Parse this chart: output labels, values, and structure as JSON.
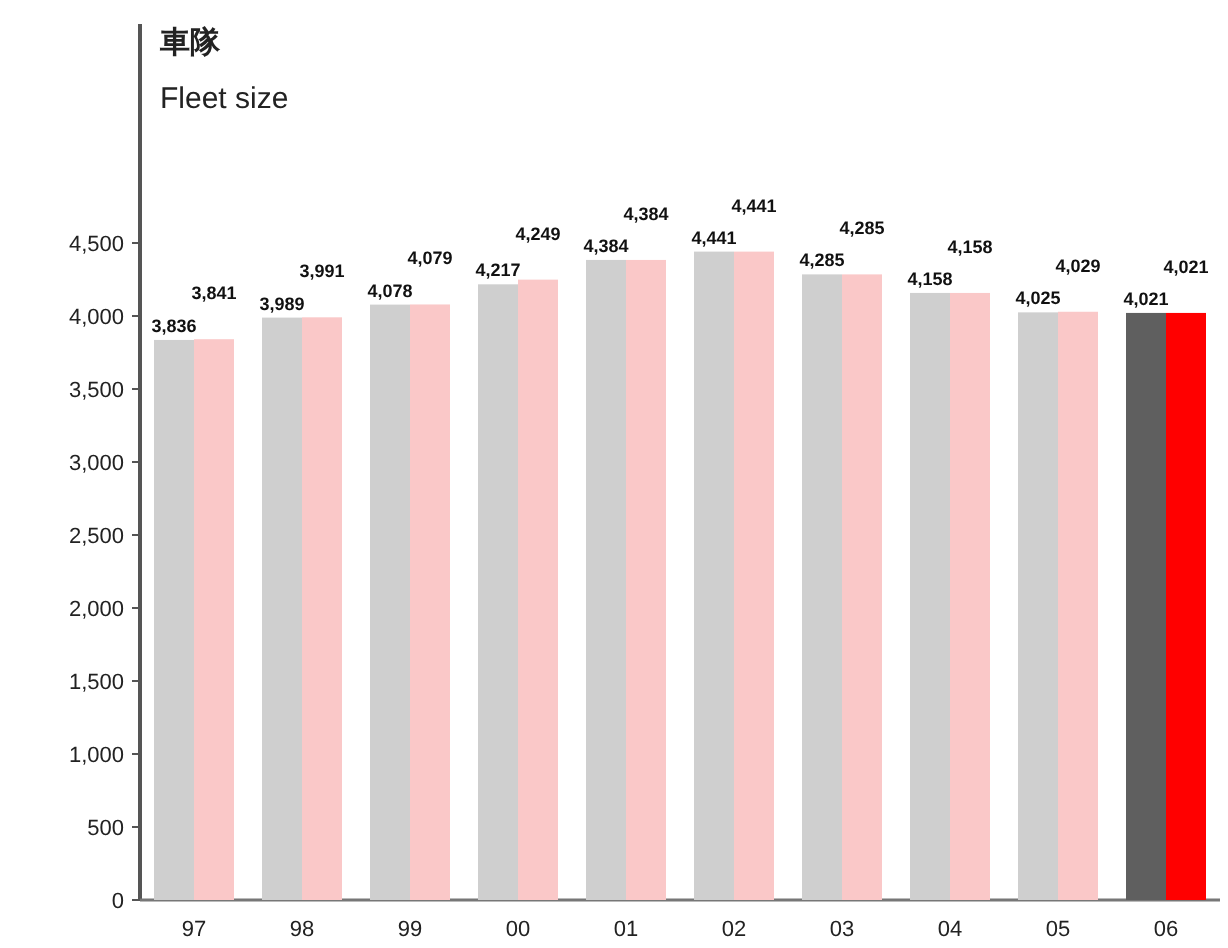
{
  "chart_data": {
    "type": "bar",
    "title": "車隊",
    "subtitle": "Fleet size",
    "categories": [
      "97",
      "98",
      "99",
      "00",
      "01",
      "02",
      "03",
      "04",
      "05",
      "06"
    ],
    "series": [
      {
        "colors": [
          "#cfcfcf",
          "#cfcfcf",
          "#cfcfcf",
          "#cfcfcf",
          "#cfcfcf",
          "#cfcfcf",
          "#cfcfcf",
          "#cfcfcf",
          "#cfcfcf",
          "#5f5f5f"
        ],
        "values": [
          3836,
          3989,
          4078,
          4217,
          4384,
          4441,
          4285,
          4158,
          4025,
          4021
        ],
        "value_labels": [
          "3,836",
          "3,989",
          "4,078",
          "4,217",
          "4,384",
          "4,441",
          "4,285",
          "4,158",
          "4,025",
          "4,021"
        ]
      },
      {
        "colors": [
          "#fac8c8",
          "#fac8c8",
          "#fac8c8",
          "#fac8c8",
          "#fac8c8",
          "#fac8c8",
          "#fac8c8",
          "#fac8c8",
          "#fac8c8",
          "#ff0000"
        ],
        "values": [
          3841,
          3991,
          4079,
          4249,
          4384,
          4441,
          4285,
          4158,
          4029,
          4021
        ],
        "value_labels": [
          "3,841",
          "3,991",
          "4,079",
          "4,249",
          "4,384",
          "4,441",
          "4,285",
          "4,158",
          "4,029",
          "4,021"
        ]
      }
    ],
    "ylim": [
      0,
      6000
    ],
    "yticks": [
      0,
      500,
      {
        "value": 1000,
        "label": "1,000"
      },
      {
        "value": 1500,
        "label": "1,500"
      },
      {
        "value": 2000,
        "label": "2,000"
      },
      {
        "value": 2500,
        "label": "2,500"
      },
      {
        "value": 3000,
        "label": "3,000"
      },
      {
        "value": 3500,
        "label": "3,500"
      },
      {
        "value": 4000,
        "label": "4,000"
      },
      {
        "value": 4500,
        "label": "4,500"
      }
    ],
    "grid": false
  }
}
